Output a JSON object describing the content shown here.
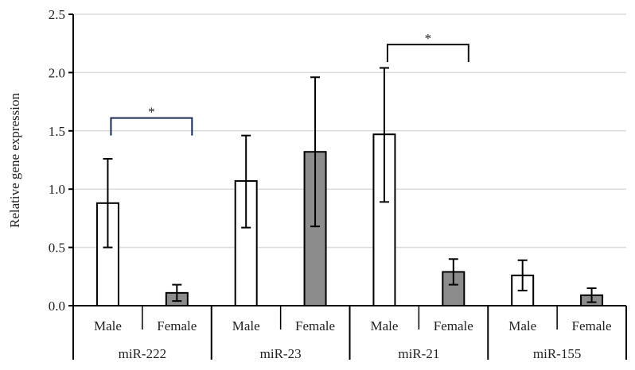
{
  "chart_data": {
    "type": "bar",
    "title": "",
    "xlabel": "",
    "ylabel": "Relative gene expression",
    "ylim": [
      0,
      2.5
    ],
    "yticks": [
      "0.0",
      "0.5",
      "1.0",
      "1.5",
      "2.0",
      "2.5"
    ],
    "grid": true,
    "groups": [
      "miR-222",
      "miR-23",
      "miR-21",
      "miR-155"
    ],
    "subcategories": [
      "Male",
      "Female"
    ],
    "series": [
      {
        "values": [
          0.88,
          1.07,
          1.47,
          0.26
        ],
        "error_low": [
          0.5,
          0.67,
          0.89,
          0.13
        ],
        "error_high": [
          1.26,
          1.46,
          2.04,
          0.39
        ],
        "color": "#ffffff"
      },
      {
        "values": [
          0.11,
          1.32,
          0.29,
          0.09
        ],
        "error_low": [
          0.04,
          0.68,
          0.18,
          0.03
        ],
        "error_high": [
          0.18,
          1.96,
          0.4,
          0.15
        ],
        "color": "#8c8c8c"
      }
    ],
    "significance": [
      {
        "group": "miR-222",
        "label": "*",
        "level": 1.61
      },
      {
        "group": "miR-21",
        "label": "*",
        "level": 2.24
      }
    ]
  }
}
